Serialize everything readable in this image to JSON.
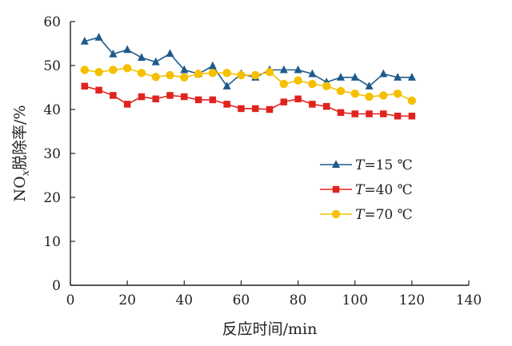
{
  "chart_data": {
    "type": "line",
    "xlabel": "反应时间/min",
    "ylabel_main": "NO",
    "ylabel_sub": "x",
    "ylabel_rest": "脱除率/%",
    "xlim": [
      0,
      140
    ],
    "ylim": [
      0,
      60
    ],
    "x_ticks": [
      "0",
      "20",
      "40",
      "60",
      "80",
      "100",
      "120",
      "140"
    ],
    "y_ticks": [
      "0",
      "10",
      "20",
      "30",
      "40",
      "50",
      "60"
    ],
    "grid": false,
    "legend_position": "center-right",
    "x": [
      5,
      10,
      15,
      20,
      25,
      30,
      35,
      40,
      45,
      50,
      55,
      60,
      65,
      70,
      75,
      80,
      85,
      90,
      95,
      100,
      105,
      110,
      115,
      120
    ],
    "series": [
      {
        "name_var": "T",
        "name_value": "=15 ℃",
        "marker": "triangle",
        "color": "#1f5a8c",
        "values": [
          55.5,
          56.4,
          52.6,
          53.6,
          51.8,
          50.8,
          52.7,
          49.0,
          48.1,
          49.9,
          45.3,
          48.1,
          47.3,
          49.0,
          49.0,
          49.0,
          48.1,
          46.2,
          47.3,
          47.3,
          45.3,
          48.1,
          47.3,
          47.3
        ]
      },
      {
        "name_var": "T",
        "name_value": "=40 ℃",
        "marker": "square",
        "color": "#e0231f",
        "values": [
          45.3,
          44.4,
          43.2,
          41.2,
          42.9,
          42.4,
          43.2,
          42.9,
          42.2,
          42.2,
          41.2,
          40.2,
          40.2,
          40.0,
          41.7,
          42.4,
          41.2,
          40.7,
          39.3,
          39.0,
          39.0,
          39.0,
          38.5,
          38.5
        ]
      },
      {
        "name_var": "T",
        "name_value": "=70 ℃",
        "marker": "circle",
        "color": "#f5c000",
        "values": [
          49.0,
          48.5,
          49.0,
          49.4,
          48.3,
          47.4,
          47.8,
          47.3,
          48.1,
          48.3,
          48.3,
          47.8,
          47.8,
          48.5,
          45.8,
          46.6,
          45.8,
          45.3,
          44.2,
          43.6,
          42.9,
          43.2,
          43.6,
          42.0
        ]
      }
    ]
  }
}
